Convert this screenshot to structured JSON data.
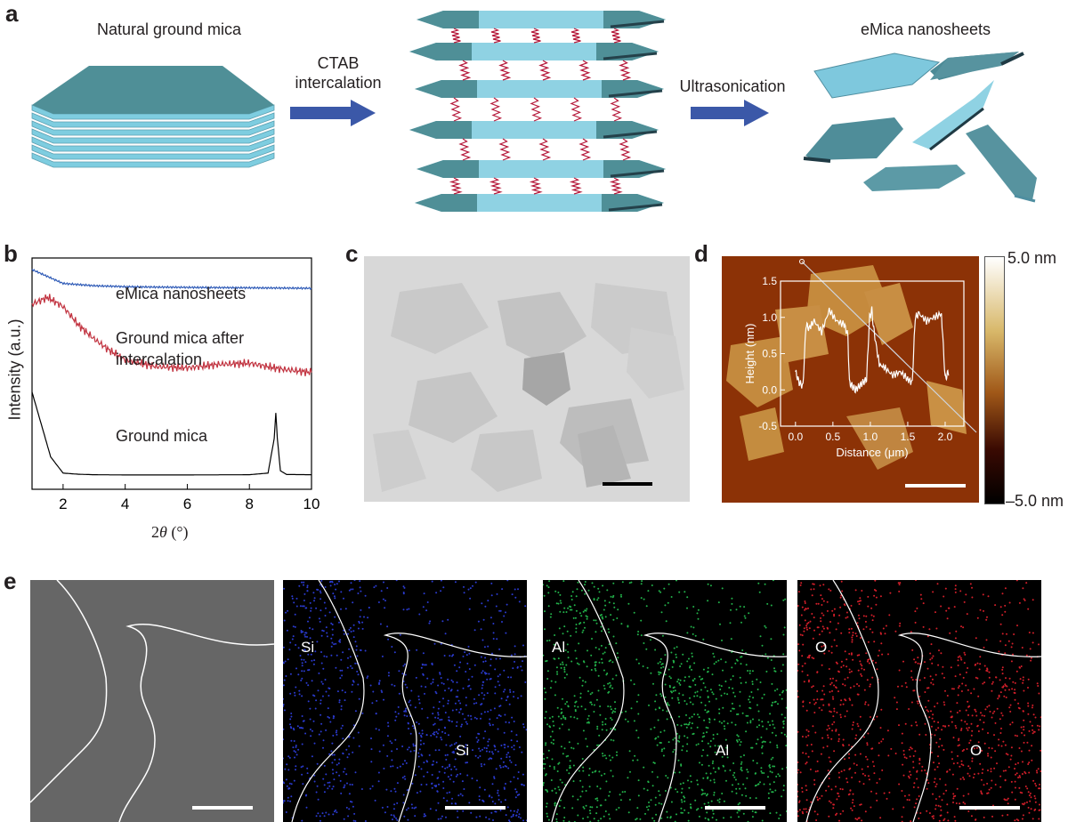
{
  "panels": {
    "a": {
      "letter": "a",
      "left_label": "Natural ground mica",
      "step1_label_line1": "CTAB",
      "step1_label_line2": "intercalation",
      "step2_label": "Ultrasonication",
      "right_label": "eMica nanosheets"
    },
    "b": {
      "letter": "b",
      "ylabel": "Intensity (a.u.)",
      "xlabel": "2θ (°)",
      "curve_labels": [
        "eMica nanosheets",
        "Ground mica after",
        "intercalation",
        "Ground mica"
      ]
    },
    "c": {
      "letter": "c"
    },
    "d": {
      "letter": "d",
      "colorbar_max": "5.0 nm",
      "colorbar_min": "–5.0 nm",
      "inset_ylabel": "Height (nm)",
      "inset_xlabel": "Distance (μm)"
    },
    "e": {
      "letter": "e",
      "labels": [
        {
          "top": "Si",
          "bottom": "Si",
          "color": "#2b3bd0"
        },
        {
          "top": "Al",
          "bottom": "Al",
          "color": "#22b24a"
        },
        {
          "top": "O",
          "bottom": "O",
          "color": "#d41f2a"
        }
      ]
    }
  },
  "chart_data": [
    {
      "type": "line",
      "panel": "b",
      "xlabel": "2θ (°)",
      "ylabel": "Intensity (a.u.)",
      "xlim": [
        1,
        10
      ],
      "xticks": [
        "2",
        "4",
        "6",
        "8",
        "10"
      ],
      "series": [
        {
          "name": "eMica nanosheets",
          "color": "#2f5bb7",
          "x": [
            1,
            1.5,
            2,
            2.5,
            3,
            4,
            5,
            6,
            7,
            8,
            9,
            10
          ],
          "y": [
            0.95,
            0.92,
            0.89,
            0.885,
            0.88,
            0.876,
            0.874,
            0.873,
            0.872,
            0.871,
            0.87,
            0.869
          ]
        },
        {
          "name": "Ground mica after intercalation",
          "color": "#c1323f",
          "x": [
            1,
            1.5,
            2,
            2.5,
            3,
            3.5,
            4,
            5,
            6,
            7,
            8,
            9,
            10
          ],
          "y": [
            0.8,
            0.83,
            0.79,
            0.71,
            0.65,
            0.6,
            0.56,
            0.53,
            0.525,
            0.54,
            0.545,
            0.52,
            0.505
          ]
        },
        {
          "name": "Ground mica",
          "color": "#000000",
          "x": [
            1,
            1.3,
            1.6,
            2,
            2.5,
            3,
            4,
            6,
            8,
            8.6,
            8.8,
            8.85,
            8.9,
            9.0,
            9.2,
            10
          ],
          "y": [
            0.42,
            0.28,
            0.14,
            0.07,
            0.065,
            0.063,
            0.062,
            0.062,
            0.063,
            0.07,
            0.22,
            0.33,
            0.22,
            0.08,
            0.064,
            0.063
          ]
        }
      ]
    },
    {
      "type": "line",
      "panel": "d-inset",
      "xlabel": "Distance (μm)",
      "ylabel": "Height (nm)",
      "xlim": [
        -0.2,
        2.25
      ],
      "ylim": [
        -0.5,
        1.5
      ],
      "xticks": [
        "0.0",
        "0.5",
        "1.0",
        "1.5",
        "2.0"
      ],
      "yticks": [
        "-0.5",
        "0.0",
        "0.5",
        "1.0",
        "1.5"
      ],
      "series": [
        {
          "color": "#ffffff",
          "x": [
            0.0,
            0.05,
            0.1,
            0.14,
            0.18,
            0.25,
            0.35,
            0.45,
            0.55,
            0.65,
            0.7,
            0.72,
            0.76,
            0.8,
            0.85,
            0.9,
            0.95,
            0.99,
            1.02,
            1.05,
            1.12,
            1.2,
            1.3,
            1.4,
            1.5,
            1.56,
            1.6,
            1.65,
            1.75,
            1.85,
            1.95,
            2.0,
            2.02,
            2.05
          ],
          "y": [
            0.25,
            0.1,
            0.05,
            0.9,
            0.85,
            0.95,
            0.8,
            1.1,
            0.95,
            0.9,
            0.75,
            0.1,
            0.05,
            0.0,
            0.05,
            0.1,
            0.15,
            1.0,
            1.1,
            0.8,
            0.35,
            0.3,
            0.2,
            0.25,
            0.15,
            0.1,
            1.0,
            1.05,
            0.95,
            1.0,
            1.05,
            0.15,
            0.2,
            0.25
          ]
        }
      ]
    }
  ]
}
